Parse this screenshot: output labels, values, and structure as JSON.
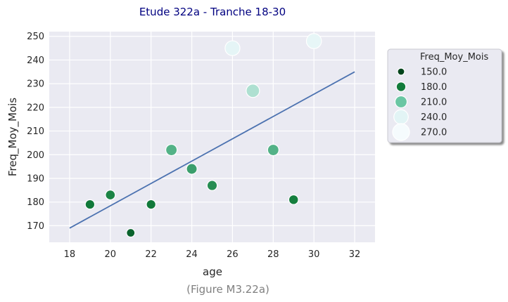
{
  "chart_data": {
    "type": "scatter",
    "title": "Etude 322a - Tranche 18-30",
    "xlabel": "age",
    "ylabel": "Freq_Moy_Mois",
    "caption": "(Figure M3.22a)",
    "xlim": [
      17,
      33
    ],
    "ylim": [
      163,
      252
    ],
    "xticks": [
      18,
      20,
      22,
      24,
      26,
      28,
      30,
      32
    ],
    "yticks": [
      170,
      180,
      190,
      200,
      210,
      220,
      230,
      240,
      250
    ],
    "grid": true,
    "legend": {
      "title": "Freq_Moy_Mois",
      "placement": "outside-right",
      "entries": [
        {
          "label": "150.0",
          "value": 150,
          "color": "#00441b"
        },
        {
          "label": "180.0",
          "value": 180,
          "color": "#127b3b"
        },
        {
          "label": "210.0",
          "value": 210,
          "color": "#6ac6a3"
        },
        {
          "label": "240.0",
          "value": 240,
          "color": "#e2f4f5"
        },
        {
          "label": "270.0",
          "value": 270,
          "color": "#f5fbfd"
        }
      ]
    },
    "points": [
      {
        "x": 19,
        "y": 179
      },
      {
        "x": 20,
        "y": 183
      },
      {
        "x": 21,
        "y": 167
      },
      {
        "x": 22,
        "y": 179
      },
      {
        "x": 23,
        "y": 202
      },
      {
        "x": 24,
        "y": 194
      },
      {
        "x": 25,
        "y": 187
      },
      {
        "x": 26,
        "y": 245
      },
      {
        "x": 27,
        "y": 227
      },
      {
        "x": 28,
        "y": 202
      },
      {
        "x": 29,
        "y": 181
      },
      {
        "x": 30,
        "y": 248
      }
    ],
    "regression_line": {
      "x": [
        18,
        32
      ],
      "y": [
        169,
        235
      ],
      "color": "#4c72b0"
    },
    "colors": {
      "title": "#000080",
      "plot_background": "#eaeaf2",
      "grid": "#ffffff",
      "caption": "#808080"
    }
  }
}
